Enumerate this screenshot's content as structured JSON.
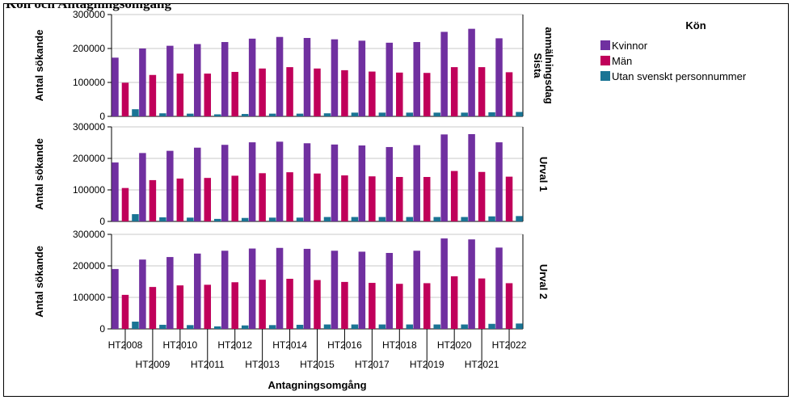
{
  "page": {
    "top_title": "Kön och Antagningsomgång"
  },
  "chart_data": {
    "type": "bar",
    "xlabel": "Antagningsomgång",
    "ylabel": "Antal sökande",
    "ylim": [
      0,
      300000
    ],
    "yticks": [
      "0",
      "100000",
      "200000",
      "300000"
    ],
    "grid": true,
    "legend": {
      "title": "Kön",
      "placement": "top-right"
    },
    "categories": [
      "HT2008",
      "HT2009",
      "HT2010",
      "HT2011",
      "HT2012",
      "HT2013",
      "HT2014",
      "HT2015",
      "HT2016",
      "HT2017",
      "HT2018",
      "HT2019",
      "HT2020",
      "HT2021",
      "HT2022"
    ],
    "series_meta": [
      {
        "name": "Kvinnor",
        "color": "#7030a0"
      },
      {
        "name": "Män",
        "color": "#c0005a"
      },
      {
        "name": "Utan svenskt personnummer",
        "color": "#1a7494"
      }
    ],
    "panels": [
      {
        "label": "Sista anmälningsdag",
        "label_lines": [
          "Sista",
          "anmälningsdag"
        ],
        "series": [
          {
            "name": "Kvinnor",
            "values": [
              173000,
              200000,
              208000,
              213000,
              219000,
              229000,
              234000,
              231000,
              227000,
              223000,
              217000,
              219000,
              249000,
              258000,
              230000
            ]
          },
          {
            "name": "Män",
            "values": [
              99000,
              122000,
              126000,
              126000,
              131000,
              141000,
              145000,
              141000,
              136000,
              132000,
              129000,
              128000,
              145000,
              145000,
              130000
            ]
          },
          {
            "name": "Utan svenskt personnummer",
            "values": [
              21000,
              9000,
              8000,
              6000,
              7000,
              8000,
              8000,
              9000,
              11000,
              11000,
              11000,
              11000,
              11000,
              12000,
              13000
            ]
          }
        ]
      },
      {
        "label": "Urval 1",
        "label_lines": [
          "Urval 1"
        ],
        "series": [
          {
            "name": "Kvinnor",
            "values": [
              187000,
              217000,
              224000,
              234000,
              243000,
              251000,
              253000,
              248000,
              244000,
              241000,
              236000,
              242000,
              276000,
              277000,
              251000
            ]
          },
          {
            "name": "Män",
            "values": [
              106000,
              131000,
              136000,
              138000,
              145000,
              153000,
              156000,
              152000,
              146000,
              143000,
              141000,
              141000,
              160000,
              157000,
              142000
            ]
          },
          {
            "name": "Utan svenskt personnummer",
            "values": [
              23000,
              13000,
              12000,
              8000,
              11000,
              12000,
              12000,
              14000,
              14000,
              14000,
              14000,
              14000,
              14000,
              16000,
              17000
            ]
          }
        ]
      },
      {
        "label": "Urval 2",
        "label_lines": [
          "Urval 2"
        ],
        "series": [
          {
            "name": "Kvinnor",
            "values": [
              190000,
              220000,
              228000,
              239000,
              248000,
              255000,
              257000,
              254000,
              248000,
              245000,
              241000,
              248000,
              287000,
              284000,
              258000
            ]
          },
          {
            "name": "Män",
            "values": [
              108000,
              133000,
              138000,
              140000,
              148000,
              156000,
              159000,
              155000,
              149000,
              146000,
              143000,
              145000,
              167000,
              160000,
              145000
            ]
          },
          {
            "name": "Utan svenskt personnummer",
            "values": [
              23000,
              13000,
              12000,
              8000,
              11000,
              12000,
              13000,
              14000,
              14000,
              14000,
              14000,
              14000,
              14000,
              16000,
              17000
            ]
          }
        ]
      }
    ]
  }
}
